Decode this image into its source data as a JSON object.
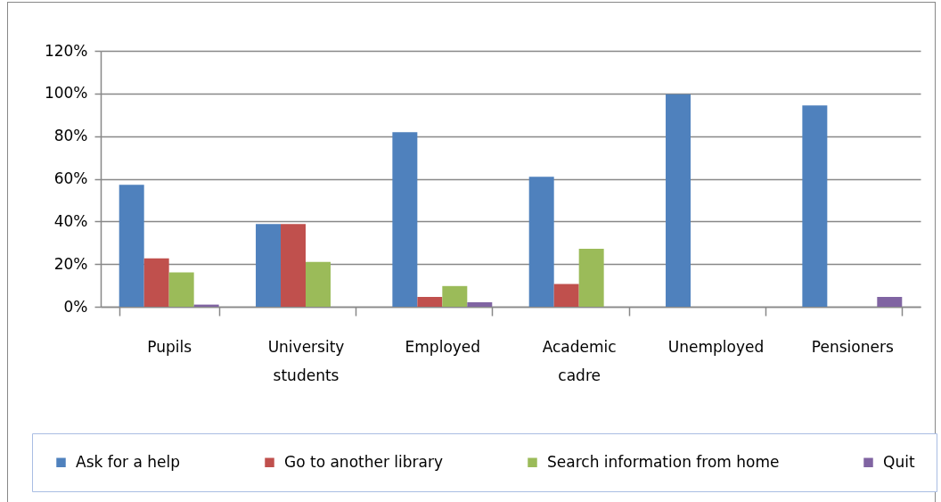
{
  "chart_data": {
    "type": "bar",
    "categories": [
      "Pupils",
      "University students",
      "Employed",
      "Academic cadre",
      "Unemployed",
      "Pensioners"
    ],
    "series": [
      {
        "name": "Ask for a help",
        "color": "#4f81bd",
        "values": [
          57.2,
          38.8,
          81.8,
          60.9,
          99.6,
          94.4
        ]
      },
      {
        "name": "Go to another library",
        "color": "#c0504d",
        "values": [
          22.7,
          38.8,
          4.6,
          10.7,
          null,
          null
        ]
      },
      {
        "name": "Search information from home",
        "color": "#9bbb59",
        "values": [
          16.1,
          21.0,
          9.7,
          27.2,
          null,
          null
        ]
      },
      {
        "name": "Quit",
        "color": "#8064a2",
        "values": [
          1.0,
          null,
          2.1,
          null,
          null,
          4.6
        ]
      }
    ],
    "ylim": [
      0,
      120
    ],
    "yticks": [
      {
        "value": 0,
        "label": "0%"
      },
      {
        "value": 20,
        "label": "20%"
      },
      {
        "value": 40,
        "label": "40%"
      },
      {
        "value": 60,
        "label": "60%"
      },
      {
        "value": 80,
        "label": "80%"
      },
      {
        "value": 100,
        "label": "100%"
      },
      {
        "value": 120,
        "label": "120%"
      }
    ],
    "grid": "y",
    "legend": "bottom"
  }
}
